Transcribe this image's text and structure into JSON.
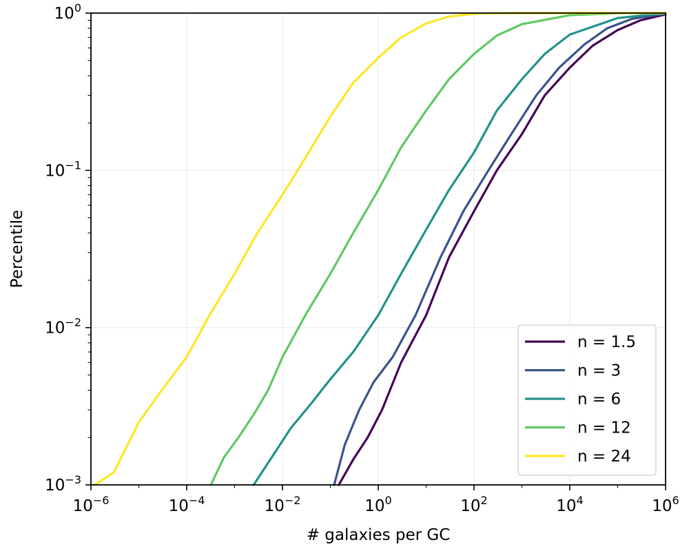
{
  "chart_data": {
    "type": "line",
    "title": "",
    "xlabel": "# galaxies per GC",
    "ylabel": "Percentile",
    "xscale": "log",
    "yscale": "log",
    "xlim": [
      1e-06,
      1000000.0
    ],
    "ylim": [
      0.001,
      1
    ],
    "x_ticks": [
      {
        "value": 1e-06,
        "base": "10",
        "exp": "−6"
      },
      {
        "value": 0.0001,
        "base": "10",
        "exp": "−4"
      },
      {
        "value": 0.01,
        "base": "10",
        "exp": "−2"
      },
      {
        "value": 1.0,
        "base": "10",
        "exp": "0"
      },
      {
        "value": 100.0,
        "base": "10",
        "exp": "2"
      },
      {
        "value": 10000.0,
        "base": "10",
        "exp": "4"
      },
      {
        "value": 1000000.0,
        "base": "10",
        "exp": "6"
      }
    ],
    "y_ticks": [
      {
        "value": 0.001,
        "base": "10",
        "exp": "−3"
      },
      {
        "value": 0.01,
        "base": "10",
        "exp": "−2"
      },
      {
        "value": 0.1,
        "base": "10",
        "exp": "−1"
      },
      {
        "value": 1.0,
        "base": "10",
        "exp": "0"
      }
    ],
    "grid": true,
    "legend_position": "lower-right",
    "series": [
      {
        "name": "n = 1.5",
        "color": "#440154",
        "x": [
          0.15,
          0.3,
          0.6,
          1.2,
          3,
          10,
          30,
          100,
          300,
          1000,
          3000,
          10000,
          30000,
          100000,
          300000,
          1000000
        ],
        "y": [
          0.001,
          0.00145,
          0.002,
          0.003,
          0.006,
          0.012,
          0.028,
          0.055,
          0.1,
          0.17,
          0.3,
          0.45,
          0.62,
          0.78,
          0.9,
          0.98
        ]
      },
      {
        "name": "n = 3",
        "color": "#3b528b",
        "x": [
          0.12,
          0.2,
          0.4,
          0.8,
          2,
          6,
          20,
          60,
          200,
          600,
          2000,
          6000,
          20000,
          60000,
          200000,
          1000000
        ],
        "y": [
          0.001,
          0.0018,
          0.003,
          0.0045,
          0.0065,
          0.012,
          0.028,
          0.055,
          0.1,
          0.17,
          0.3,
          0.45,
          0.63,
          0.8,
          0.92,
          0.99
        ]
      },
      {
        "name": "n = 6",
        "color": "#21918c",
        "x": [
          0.0025,
          0.006,
          0.015,
          0.04,
          0.1,
          0.3,
          1,
          3,
          10,
          30,
          100,
          300,
          1000,
          3000,
          10000,
          100000,
          1000000
        ],
        "y": [
          0.001,
          0.0015,
          0.0023,
          0.0033,
          0.0047,
          0.007,
          0.012,
          0.022,
          0.042,
          0.075,
          0.13,
          0.24,
          0.38,
          0.55,
          0.73,
          0.93,
          1.0
        ]
      },
      {
        "name": "n = 12",
        "color": "#5ec962",
        "x": [
          0.00032,
          0.0006,
          0.0012,
          0.0025,
          0.005,
          0.01,
          0.03,
          0.1,
          0.3,
          1,
          3,
          10,
          30,
          100,
          300,
          1000,
          10000,
          100000,
          1000000
        ],
        "y": [
          0.001,
          0.0015,
          0.002,
          0.0028,
          0.004,
          0.0065,
          0.012,
          0.022,
          0.04,
          0.075,
          0.14,
          0.24,
          0.38,
          0.55,
          0.72,
          0.85,
          0.97,
          0.998,
          1.0
        ]
      },
      {
        "name": "n = 24",
        "color": "#fde725",
        "x": [
          1.2e-06,
          3e-06,
          1e-05,
          3e-05,
          0.0001,
          0.0003,
          0.001,
          0.003,
          0.01,
          0.03,
          0.1,
          0.3,
          1,
          3,
          10,
          30,
          100,
          300,
          1000,
          1000000
        ],
        "y": [
          0.001,
          0.0012,
          0.0025,
          0.004,
          0.0065,
          0.012,
          0.022,
          0.04,
          0.07,
          0.12,
          0.22,
          0.36,
          0.52,
          0.7,
          0.86,
          0.95,
          0.99,
          0.998,
          1.0,
          1.0
        ]
      }
    ]
  }
}
